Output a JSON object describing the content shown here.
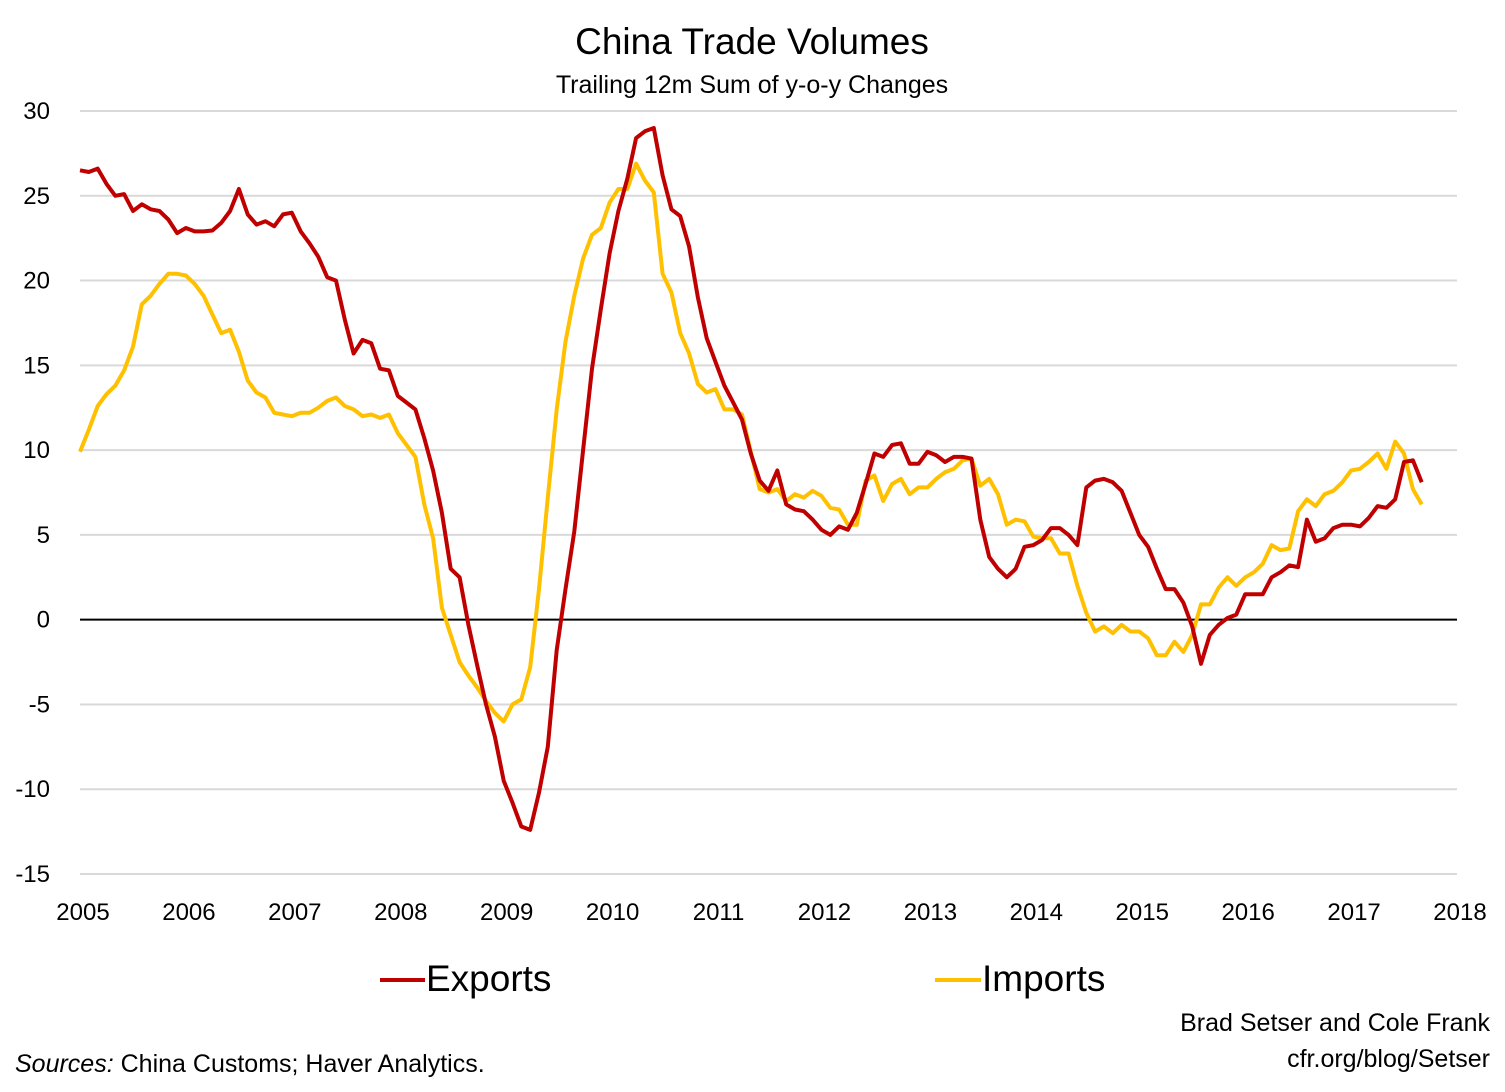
{
  "chart_data": {
    "type": "line",
    "title": "China Trade Volumes",
    "subtitle": "Trailing 12m Sum of y-o-y Changes",
    "xlabel": "",
    "ylabel": "",
    "x_start": "2005-01",
    "x_frequency": "monthly",
    "xlim": [
      2005,
      2018
    ],
    "ylim": [
      -15,
      30
    ],
    "x_ticks": [
      "2005",
      "2006",
      "2007",
      "2008",
      "2009",
      "2010",
      "2011",
      "2012",
      "2013",
      "2014",
      "2015",
      "2016",
      "2017",
      "2018"
    ],
    "y_ticks": [
      "30",
      "25",
      "20",
      "15",
      "10",
      "5",
      "0",
      "-5",
      "-10",
      "-15"
    ],
    "grid": "horizontal",
    "legend_position": "bottom",
    "series": [
      {
        "name": "Exports",
        "color": "#c00000",
        "values": [
          26.5,
          26.4,
          26.6,
          25.7,
          25.0,
          25.1,
          24.1,
          24.5,
          24.2,
          24.1,
          23.6,
          22.8,
          23.1,
          22.9,
          22.9,
          22.95,
          23.4,
          24.1,
          25.4,
          23.9,
          23.3,
          23.5,
          23.2,
          23.9,
          24.0,
          22.9,
          22.2,
          21.4,
          20.2,
          20.0,
          17.7,
          15.7,
          16.5,
          16.3,
          14.8,
          14.7,
          13.2,
          12.8,
          12.4,
          10.7,
          8.8,
          6.3,
          3.0,
          2.5,
          -0.3,
          -2.7,
          -5.0,
          -6.9,
          -9.5,
          -10.8,
          -12.2,
          -12.4,
          -10.2,
          -7.5,
          -1.8,
          1.8,
          5.2,
          10.0,
          14.8,
          18.3,
          21.6,
          24.1,
          26.0,
          28.4,
          28.8,
          29.0,
          26.2,
          24.2,
          23.8,
          22.0,
          19.0,
          16.6,
          15.2,
          13.8,
          12.8,
          11.8,
          9.8,
          8.2,
          7.6,
          8.8,
          6.8,
          6.5,
          6.4,
          5.9,
          5.3,
          5.0,
          5.5,
          5.3,
          6.3,
          8.0,
          9.8,
          9.6,
          10.3,
          10.4,
          9.2,
          9.2,
          9.9,
          9.7,
          9.3,
          9.6,
          9.6,
          9.5,
          5.9,
          3.7,
          3.0,
          2.5,
          3.0,
          4.3,
          4.4,
          4.7,
          5.4,
          5.4,
          5.0,
          4.4,
          7.8,
          8.2,
          8.3,
          8.1,
          7.6,
          6.3,
          5.0,
          4.3,
          3.0,
          1.8,
          1.8,
          1.0,
          -0.4,
          -2.6,
          -0.9,
          -0.3,
          0.1,
          0.3,
          1.5,
          1.5,
          1.5,
          2.5,
          2.8,
          3.2,
          3.1,
          5.9,
          4.6,
          4.8,
          5.4,
          5.6,
          5.6,
          5.5,
          6.0,
          6.7,
          6.6,
          7.1,
          9.3,
          9.4,
          8.1
        ]
      },
      {
        "name": "Imports",
        "color": "#ffc000",
        "values": [
          9.9,
          11.2,
          12.6,
          13.3,
          13.8,
          14.7,
          16.1,
          18.6,
          19.1,
          19.8,
          20.4,
          20.4,
          20.3,
          19.8,
          19.1,
          18.0,
          16.9,
          17.1,
          15.8,
          14.1,
          13.4,
          13.1,
          12.2,
          12.1,
          12.0,
          12.2,
          12.2,
          12.5,
          12.9,
          13.1,
          12.6,
          12.4,
          12.0,
          12.1,
          11.9,
          12.1,
          11.0,
          10.3,
          9.6,
          6.8,
          4.8,
          0.7,
          -0.9,
          -2.5,
          -3.3,
          -4.0,
          -4.8,
          -5.5,
          -6.0,
          -5.0,
          -4.7,
          -2.8,
          1.8,
          7.2,
          12.4,
          16.4,
          19.1,
          21.3,
          22.7,
          23.1,
          24.6,
          25.4,
          25.4,
          26.9,
          25.9,
          25.2,
          20.4,
          19.3,
          16.9,
          15.7,
          13.9,
          13.4,
          13.6,
          12.4,
          12.4,
          12.1,
          9.9,
          7.7,
          7.5,
          7.7,
          7.0,
          7.4,
          7.2,
          7.6,
          7.3,
          6.6,
          6.5,
          5.6,
          5.6,
          8.2,
          8.5,
          7.0,
          8.0,
          8.3,
          7.4,
          7.8,
          7.8,
          8.3,
          8.7,
          8.9,
          9.4,
          9.5,
          7.9,
          8.3,
          7.4,
          5.6,
          5.9,
          5.8,
          4.9,
          4.8,
          4.8,
          3.9,
          3.9,
          2.0,
          0.4,
          -0.7,
          -0.4,
          -0.8,
          -0.3,
          -0.7,
          -0.7,
          -1.1,
          -2.1,
          -2.1,
          -1.3,
          -1.9,
          -0.9,
          0.9,
          0.9,
          1.9,
          2.5,
          2.0,
          2.5,
          2.8,
          3.3,
          4.4,
          4.1,
          4.2,
          6.4,
          7.1,
          6.7,
          7.4,
          7.6,
          8.1,
          8.8,
          8.9,
          9.3,
          9.8,
          8.9,
          10.5,
          9.8,
          7.7,
          6.8
        ]
      }
    ]
  },
  "credits": {
    "authors": "Brad Setser and Cole Frank",
    "site": "cfr.org/blog/Setser",
    "sources_label": "Sources:",
    "sources_text": " China Customs; Haver Analytics."
  }
}
